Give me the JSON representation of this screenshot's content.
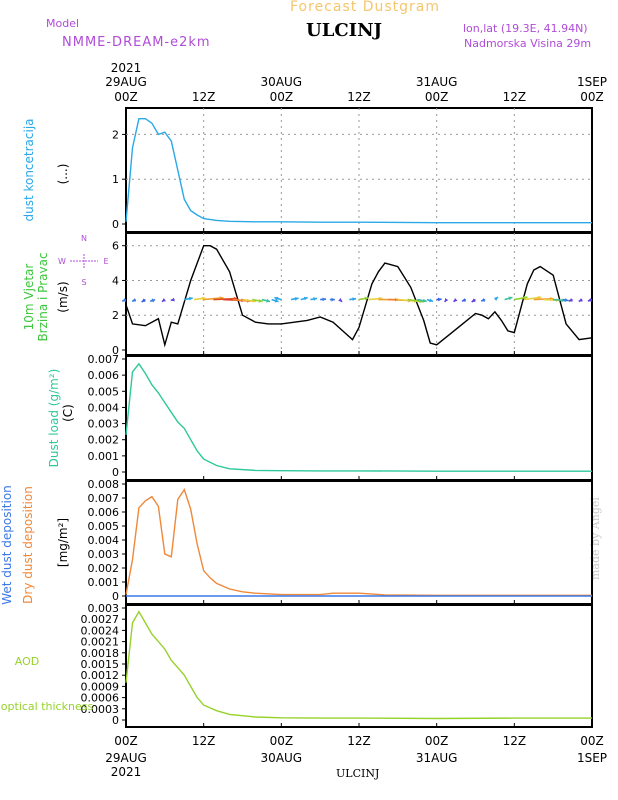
{
  "header": {
    "title": "Forecast Dustgram",
    "model_caption": "Model",
    "model_name": "NMME-DREAM-e2km",
    "station": "ULCINJ",
    "lonlat": "lon,lat (19.3E, 41.94N)",
    "elevation": "Nadmorska Visina 29m",
    "credit": "made by Angel",
    "bottom_station": "ULCINJ"
  },
  "time_axis": {
    "year": "2021",
    "ticks": [
      {
        "h": 0,
        "top": "00Z",
        "date": "29AUG"
      },
      {
        "h": 12,
        "top": "12Z",
        "date": ""
      },
      {
        "h": 24,
        "top": "00Z",
        "date": "30AUG"
      },
      {
        "h": 36,
        "top": "12Z",
        "date": ""
      },
      {
        "h": 48,
        "top": "00Z",
        "date": "31AUG"
      },
      {
        "h": 60,
        "top": "12Z",
        "date": ""
      },
      {
        "h": 72,
        "top": "00Z",
        "date": "1SEP"
      }
    ],
    "range_hours": [
      0,
      72
    ]
  },
  "compass": {
    "n": "N",
    "s": "S",
    "w": "W",
    "e": "E"
  },
  "colors": {
    "concentration": "#2aa8e8",
    "wind_speed": "#000000",
    "load": "#2ec89a",
    "dry": "#f0883a",
    "wet": "#3a78e8",
    "aod": "#96d22a",
    "label_purple": "#b04cd8",
    "label_green": "#3cc83c"
  },
  "chart_data": [
    {
      "type": "line",
      "ylabel": "dust koncetracija",
      "unit": "(...)",
      "ylim": [
        0,
        2.5
      ],
      "yticks": [
        "0",
        "1",
        "2"
      ],
      "grid": true,
      "x": [
        0,
        1,
        2,
        3,
        4,
        5,
        6,
        7,
        8,
        9,
        10,
        11,
        12,
        14,
        16,
        20,
        24,
        30,
        36,
        48,
        60,
        72
      ],
      "series": [
        {
          "values": [
            0.05,
            1.7,
            2.35,
            2.35,
            2.25,
            2.0,
            2.05,
            1.85,
            1.2,
            0.55,
            0.3,
            0.2,
            0.12,
            0.08,
            0.06,
            0.05,
            0.05,
            0.04,
            0.04,
            0.03,
            0.03,
            0.03
          ]
        }
      ]
    },
    {
      "type": "line",
      "ylabel": "10m Vjetar Brzina i Pravac",
      "unit": "(m/s)",
      "ylim": [
        0,
        6.5
      ],
      "yticks": [
        "0",
        "2",
        "4",
        "6"
      ],
      "grid": true,
      "x": [
        0,
        1,
        3,
        5,
        6,
        7,
        8,
        10,
        12,
        13,
        14,
        16,
        18,
        20,
        22,
        24,
        26,
        28,
        30,
        32,
        35,
        36,
        38,
        39,
        40,
        42,
        44,
        46,
        47,
        48,
        50,
        52,
        54,
        55,
        56,
        57,
        58,
        59,
        60,
        62,
        63,
        64,
        66,
        68,
        70,
        72
      ],
      "series": [
        {
          "values": [
            2.6,
            1.5,
            1.4,
            1.8,
            0.3,
            1.6,
            1.5,
            4.0,
            6.0,
            6.0,
            5.8,
            4.5,
            2.0,
            1.6,
            1.5,
            1.5,
            1.6,
            1.7,
            1.9,
            1.6,
            0.6,
            1.3,
            3.8,
            4.5,
            5.0,
            4.8,
            3.6,
            1.7,
            0.4,
            0.3,
            0.9,
            1.5,
            2.1,
            2.0,
            1.8,
            2.2,
            1.7,
            1.1,
            1.0,
            3.8,
            4.6,
            4.8,
            4.3,
            1.5,
            0.6,
            0.7
          ]
        }
      ],
      "wind_arrows": [
        {
          "h": 0,
          "len": 5,
          "dir": 220,
          "color": "#3a78e8"
        },
        {
          "h": 1.5,
          "len": 5,
          "dir": 225,
          "color": "#3a78e8"
        },
        {
          "h": 3,
          "len": 6,
          "dir": 230,
          "color": "#3a60e0"
        },
        {
          "h": 4.5,
          "len": 6,
          "dir": 215,
          "color": "#3a78e8"
        },
        {
          "h": 6,
          "len": 5,
          "dir": 235,
          "color": "#6040e0"
        },
        {
          "h": 7.5,
          "len": 4,
          "dir": 200,
          "color": "#6040e0"
        },
        {
          "h": 9,
          "len": 9,
          "dir": 20,
          "color": "#2aa8e8"
        },
        {
          "h": 10.5,
          "len": 12,
          "dir": 15,
          "color": "#e8d040"
        },
        {
          "h": 12,
          "len": 20,
          "dir": 10,
          "color": "#f0a030"
        },
        {
          "h": 13.5,
          "len": 24,
          "dir": 5,
          "color": "#e05020"
        },
        {
          "h": 15,
          "len": 22,
          "dir": 355,
          "color": "#e04030"
        },
        {
          "h": 16.5,
          "len": 18,
          "dir": 350,
          "color": "#f08030"
        },
        {
          "h": 18,
          "len": 14,
          "dir": 345,
          "color": "#e8d040"
        },
        {
          "h": 19.5,
          "len": 11,
          "dir": 340,
          "color": "#90d030"
        },
        {
          "h": 21,
          "len": 9,
          "dir": 335,
          "color": "#3cc0a0"
        },
        {
          "h": 22.5,
          "len": 8,
          "dir": 330,
          "color": "#2aa8e8"
        },
        {
          "h": 24,
          "len": 8,
          "dir": 150,
          "color": "#2aa8e8"
        },
        {
          "h": 25.5,
          "len": 8,
          "dir": 20,
          "color": "#2aa8e8"
        },
        {
          "h": 27,
          "len": 8,
          "dir": 30,
          "color": "#2aa8e8"
        },
        {
          "h": 28.5,
          "len": 7,
          "dir": 20,
          "color": "#2aa8e8"
        },
        {
          "h": 30,
          "len": 6,
          "dir": 10,
          "color": "#3a78e8"
        },
        {
          "h": 31.5,
          "len": 5,
          "dir": 0,
          "color": "#3a78e8"
        },
        {
          "h": 33,
          "len": 5,
          "dir": 300,
          "color": "#6040e0"
        },
        {
          "h": 34.5,
          "len": 7,
          "dir": 15,
          "color": "#2aa8e8"
        },
        {
          "h": 36,
          "len": 10,
          "dir": 20,
          "color": "#90d030"
        },
        {
          "h": 37.5,
          "len": 14,
          "dir": 10,
          "color": "#e8d040"
        },
        {
          "h": 39,
          "len": 20,
          "dir": 0,
          "color": "#f0a030"
        },
        {
          "h": 40.5,
          "len": 24,
          "dir": 355,
          "color": "#f08030"
        },
        {
          "h": 42,
          "len": 20,
          "dir": 350,
          "color": "#e8d040"
        },
        {
          "h": 43.5,
          "len": 16,
          "dir": 345,
          "color": "#90d030"
        },
        {
          "h": 45,
          "len": 10,
          "dir": 340,
          "color": "#3cc0a0"
        },
        {
          "h": 46.5,
          "len": 7,
          "dir": 330,
          "color": "#2aa8e8"
        },
        {
          "h": 48,
          "len": 5,
          "dir": 10,
          "color": "#3a60e0"
        },
        {
          "h": 49.5,
          "len": 5,
          "dir": 250,
          "color": "#6040e0"
        },
        {
          "h": 51,
          "len": 5,
          "dir": 240,
          "color": "#6040e0"
        },
        {
          "h": 52.5,
          "len": 5,
          "dir": 220,
          "color": "#3a60e0"
        },
        {
          "h": 54,
          "len": 6,
          "dir": 230,
          "color": "#6040e0"
        },
        {
          "h": 55.5,
          "len": 5,
          "dir": 215,
          "color": "#3a78e8"
        },
        {
          "h": 57,
          "len": 6,
          "dir": 60,
          "color": "#2aa8e8"
        },
        {
          "h": 58.5,
          "len": 9,
          "dir": 30,
          "color": "#3cc0a0"
        },
        {
          "h": 60,
          "len": 14,
          "dir": 20,
          "color": "#90d030"
        },
        {
          "h": 61.5,
          "len": 18,
          "dir": 15,
          "color": "#e8d040"
        },
        {
          "h": 63,
          "len": 20,
          "dir": 5,
          "color": "#f0a030"
        },
        {
          "h": 64.5,
          "len": 16,
          "dir": 355,
          "color": "#e8d040"
        },
        {
          "h": 66,
          "len": 12,
          "dir": 350,
          "color": "#3cc0a0"
        },
        {
          "h": 67.5,
          "len": 6,
          "dir": 340,
          "color": "#3a78e8"
        },
        {
          "h": 69,
          "len": 5,
          "dir": 220,
          "color": "#6040e0"
        },
        {
          "h": 70.5,
          "len": 5,
          "dir": 225,
          "color": "#6040e0"
        },
        {
          "h": 72,
          "len": 5,
          "dir": 215,
          "color": "#6040e0"
        }
      ]
    },
    {
      "type": "line",
      "ylabel": "Dust load (g/m²)",
      "unit": "(C)",
      "ylim": [
        0,
        0.007
      ],
      "yticks": [
        "0",
        "0.001",
        "0.002",
        "0.003",
        "0.004",
        "0.005",
        "0.006",
        "0.007"
      ],
      "grid": false,
      "x": [
        0,
        1,
        2,
        3,
        4,
        5,
        6,
        7,
        8,
        9,
        10,
        11,
        12,
        14,
        16,
        20,
        24,
        30,
        36,
        48,
        60,
        72
      ],
      "series": [
        {
          "values": [
            0.0023,
            0.0062,
            0.0067,
            0.0061,
            0.0054,
            0.0049,
            0.0043,
            0.0037,
            0.0031,
            0.0027,
            0.002,
            0.0013,
            0.0008,
            0.0004,
            0.0002,
            0.0001,
            8e-05,
            7e-05,
            7e-05,
            5e-05,
            5e-05,
            5e-05
          ]
        }
      ]
    },
    {
      "type": "line",
      "ylabel": "Wet dust deposition",
      "ylabel2": "Dry dust deposition",
      "unit": "[mg/m²]",
      "ylim": [
        0,
        0.008
      ],
      "yticks": [
        "0",
        "0.001",
        "0.002",
        "0.003",
        "0.004",
        "0.005",
        "0.006",
        "0.007",
        "0.008"
      ],
      "grid": false,
      "x": [
        0,
        1,
        2,
        3,
        4,
        5,
        6,
        7,
        8,
        9,
        10,
        11,
        12,
        13,
        14,
        16,
        18,
        20,
        24,
        28,
        30,
        32,
        34,
        36,
        40,
        48,
        60,
        72
      ],
      "series": [
        {
          "name": "Dry dust deposition",
          "values": [
            0.0001,
            0.0026,
            0.0063,
            0.0068,
            0.0071,
            0.0064,
            0.003,
            0.0028,
            0.0069,
            0.0076,
            0.0062,
            0.0037,
            0.0018,
            0.0013,
            0.0009,
            0.0005,
            0.0003,
            0.0002,
            0.0001,
            0.0001,
            0.0001,
            0.0002,
            0.0002,
            0.0002,
            8e-05,
            5e-05,
            5e-05,
            5e-05
          ]
        },
        {
          "name": "Wet dust deposition",
          "values": [
            0,
            0,
            0,
            0,
            0,
            0,
            0,
            0,
            0,
            0,
            0,
            0,
            0,
            0,
            0,
            0,
            0,
            0,
            0,
            0,
            0,
            0,
            0,
            0,
            0,
            0,
            0,
            0
          ]
        }
      ]
    },
    {
      "type": "line",
      "ylabel": "AOD",
      "ylabel2": "optical thickness",
      "ylim": [
        0,
        0.003
      ],
      "yticks": [
        "0",
        "0.0003",
        "0.0006",
        "0.0009",
        "0.0012",
        "0.0015",
        "0.0018",
        "0.0021",
        "0.0024",
        "0.0027",
        "0.003"
      ],
      "grid": false,
      "x": [
        0,
        1,
        2,
        3,
        4,
        5,
        6,
        7,
        8,
        9,
        10,
        11,
        12,
        14,
        16,
        20,
        24,
        30,
        36,
        48,
        60,
        72
      ],
      "series": [
        {
          "values": [
            0.001,
            0.0026,
            0.0029,
            0.0026,
            0.0023,
            0.0021,
            0.0019,
            0.0016,
            0.0014,
            0.0012,
            0.0009,
            0.0006,
            0.0004,
            0.00025,
            0.00015,
            8e-05,
            6e-05,
            5e-05,
            5e-05,
            4e-05,
            5e-05,
            5e-05
          ]
        }
      ]
    }
  ]
}
